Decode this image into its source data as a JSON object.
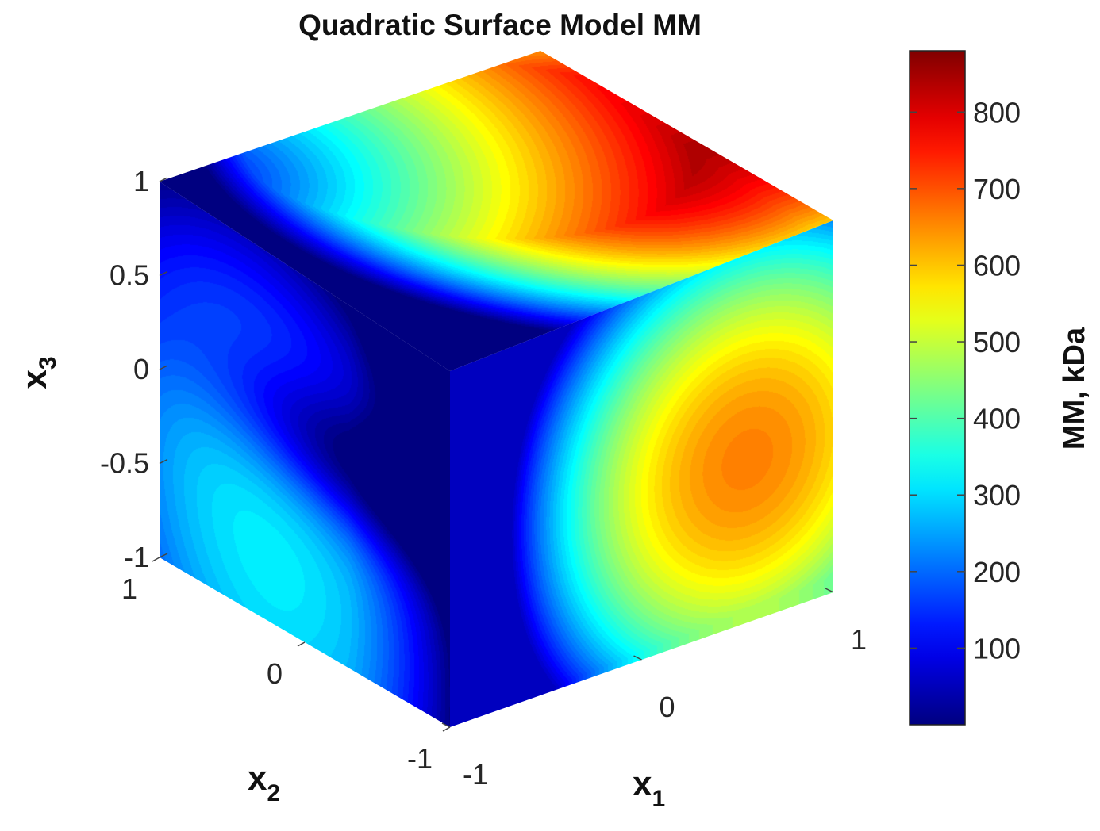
{
  "chart_data": {
    "type": "heatmap",
    "plot_type": "3D cube slice surface with colorbar",
    "title": "Quadratic Surface Model MM",
    "colormap": "jet",
    "view": "isometric cube (x1 right face, x2 left face, x3 vertical)",
    "axes": {
      "x1": {
        "label_base": "x",
        "label_sub": "1",
        "range": [
          -1,
          1
        ],
        "ticks": [
          -1,
          0,
          1
        ],
        "tick_labels": [
          "-1",
          "0",
          "1"
        ]
      },
      "x2": {
        "label_base": "x",
        "label_sub": "2",
        "range": [
          -1,
          1
        ],
        "ticks": [
          -1,
          0,
          1
        ],
        "tick_labels": [
          "-1",
          "0",
          "1"
        ]
      },
      "x3": {
        "label_base": "x",
        "label_sub": "3",
        "range": [
          -1,
          1
        ],
        "ticks": [
          -1,
          -0.5,
          0,
          0.5,
          1
        ],
        "tick_labels": [
          "-1",
          "-0.5",
          "0",
          "0.5",
          "1"
        ]
      }
    },
    "colorbar": {
      "label": "MM, kDa",
      "range": [
        0,
        880
      ],
      "ticks": [
        100,
        200,
        300,
        400,
        500,
        600,
        700,
        800
      ],
      "tick_labels": [
        "100",
        "200",
        "300",
        "400",
        "500",
        "600",
        "700",
        "800"
      ]
    },
    "faces": [
      {
        "name": "top face (x3 = 1)",
        "min_value": 0,
        "max_value": 860,
        "hot_spot": {
          "x1": 1,
          "x2": 0.4,
          "value": 860
        },
        "cold_corner": {
          "x1": -1,
          "x2": 1,
          "value": 10
        }
      },
      {
        "name": "left face (x1 = -1)",
        "min_value": 0,
        "max_value": 320,
        "local_max": {
          "x2": 0.3,
          "x3": -0.5,
          "value": 320
        },
        "cold_edge": "x2 = -1 and upper region near x3 = 0.3"
      },
      {
        "name": "right face (x2 = -1)",
        "min_value": 80,
        "max_value": 660,
        "hot_spot": {
          "x1": 0.6,
          "x3": -0.2,
          "value": 660
        },
        "cold_edge": "x1 = -1"
      }
    ],
    "grid": false,
    "legend": "colorbar right"
  }
}
